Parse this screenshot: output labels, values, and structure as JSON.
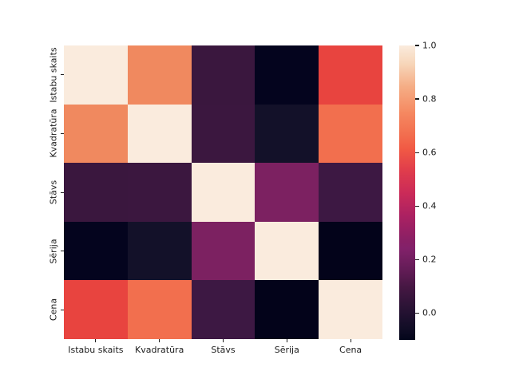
{
  "chart_data": {
    "type": "heatmap",
    "title": "",
    "xlabel": "",
    "ylabel": "",
    "categories": [
      "Istabu skaits",
      "Kvadratūra",
      "Stāvs",
      "Sērija",
      "Cena"
    ],
    "matrix": [
      [
        1.0,
        0.75,
        0.07,
        -0.09,
        0.57
      ],
      [
        0.75,
        1.0,
        0.08,
        -0.05,
        0.67
      ],
      [
        0.07,
        0.08,
        1.0,
        0.24,
        0.09
      ],
      [
        -0.09,
        -0.05,
        0.24,
        1.0,
        -0.1
      ],
      [
        0.57,
        0.67,
        0.09,
        -0.1,
        1.0
      ]
    ],
    "cell_colors": [
      [
        "#faebdd",
        "#f0895f",
        "#3a173e",
        "#04041e",
        "#e8443f"
      ],
      [
        "#f0895f",
        "#faebdd",
        "#3b173f",
        "#131129",
        "#f26f4e"
      ],
      [
        "#3a173e",
        "#3b173f",
        "#faebdd",
        "#7c2161",
        "#3d1843"
      ],
      [
        "#04041e",
        "#131129",
        "#7c2161",
        "#faebdd",
        "#03031a"
      ],
      [
        "#e8443f",
        "#f26f4e",
        "#3d1843",
        "#03031a",
        "#faebdd"
      ]
    ],
    "grid": false,
    "colorbar": {
      "position": "right",
      "range": [
        -0.1,
        1.0
      ],
      "tick_labels": [
        "1.0",
        "0.8",
        "0.6",
        "0.4",
        "0.2",
        "0.0"
      ],
      "tick_values": [
        1.0,
        0.8,
        0.6,
        0.4,
        0.2,
        0.0
      ],
      "colormap_name": "rocket",
      "gradient_stops": [
        {
          "pct": 0,
          "color": "#03051a"
        },
        {
          "pct": 4,
          "color": "#110d26"
        },
        {
          "pct": 11,
          "color": "#2a1335"
        },
        {
          "pct": 18,
          "color": "#461743"
        },
        {
          "pct": 24,
          "color": "#641c57"
        },
        {
          "pct": 31,
          "color": "#82216a"
        },
        {
          "pct": 34,
          "color": "#8a2065"
        },
        {
          "pct": 42,
          "color": "#ab2162"
        },
        {
          "pct": 50,
          "color": "#cb2b58"
        },
        {
          "pct": 58,
          "color": "#e13e4b"
        },
        {
          "pct": 65,
          "color": "#f15a44"
        },
        {
          "pct": 69,
          "color": "#f26b4d"
        },
        {
          "pct": 77,
          "color": "#f58860"
        },
        {
          "pct": 86,
          "color": "#f5ad85"
        },
        {
          "pct": 94,
          "color": "#f7d7bb"
        },
        {
          "pct": 100,
          "color": "#faebdd"
        }
      ]
    },
    "colors": {
      "background": "#ffffff",
      "tick_text": "#1c1c1c"
    }
  }
}
